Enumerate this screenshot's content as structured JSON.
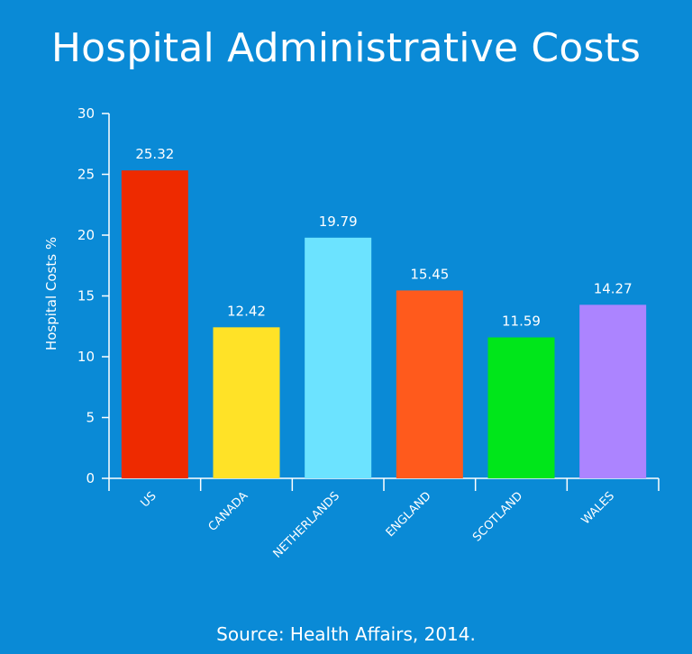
{
  "chart_data": {
    "type": "bar",
    "title": "Hospital Administrative Costs",
    "ylabel": "Hospital Costs %",
    "xlabel": "",
    "ylim": [
      0,
      30
    ],
    "yticks": [
      0,
      5,
      10,
      15,
      20,
      25,
      30
    ],
    "categories": [
      "US",
      "CANADA",
      "NETHERLANDS",
      "ENGLAND",
      "SCOTLAND",
      "WALES"
    ],
    "values": [
      25.32,
      12.42,
      19.79,
      15.45,
      11.59,
      14.27
    ],
    "value_labels": [
      "25.32",
      "12.42",
      "19.79",
      "15.45",
      "11.59",
      "14.27"
    ],
    "colors": [
      "#ee2a00",
      "#ffe227",
      "#6ce3ff",
      "#ff5a1c",
      "#00e61a",
      "#ac84ff"
    ],
    "grid": false,
    "legend": "none"
  },
  "source": "Source: Health Affairs, 2014."
}
